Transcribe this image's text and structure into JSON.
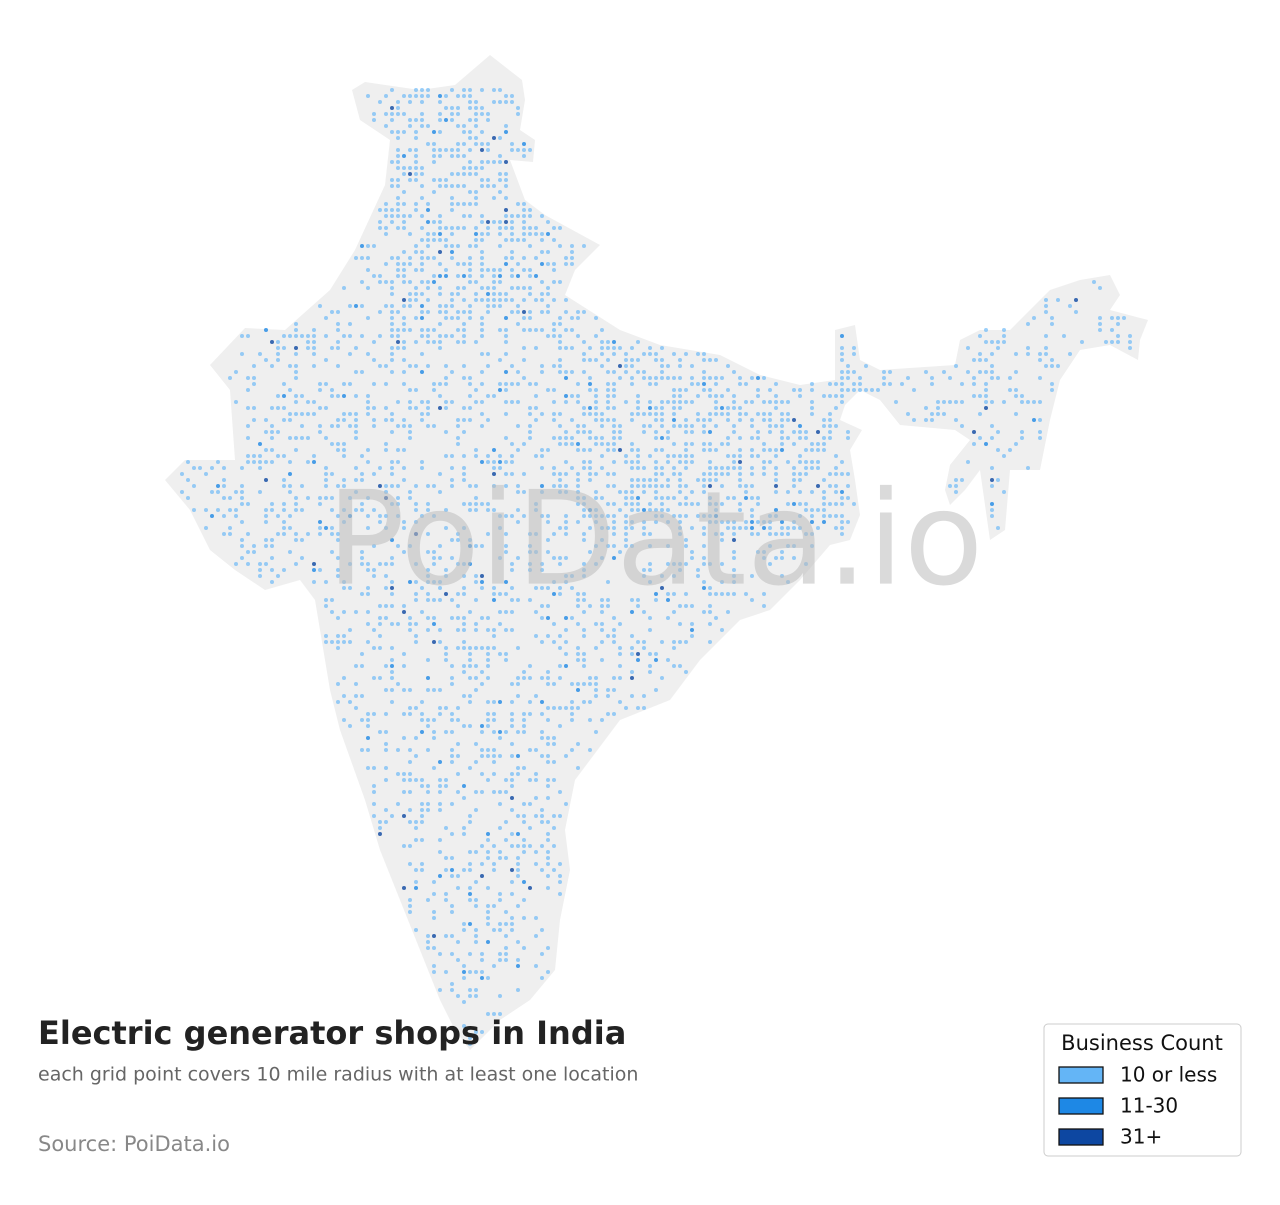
{
  "title": "Electric generator shops in India",
  "subtitle": "each grid point covers 10 mile radius with at least one location",
  "source": "Source: PoiData.io",
  "watermark": "PoiData.io",
  "legend": {
    "title": "Business Count",
    "items": [
      {
        "label": "10 or less",
        "color": "#64b5f6"
      },
      {
        "label": "11-30",
        "color": "#1e88e5"
      },
      {
        "label": "31+",
        "color": "#0d47a1"
      }
    ]
  }
}
